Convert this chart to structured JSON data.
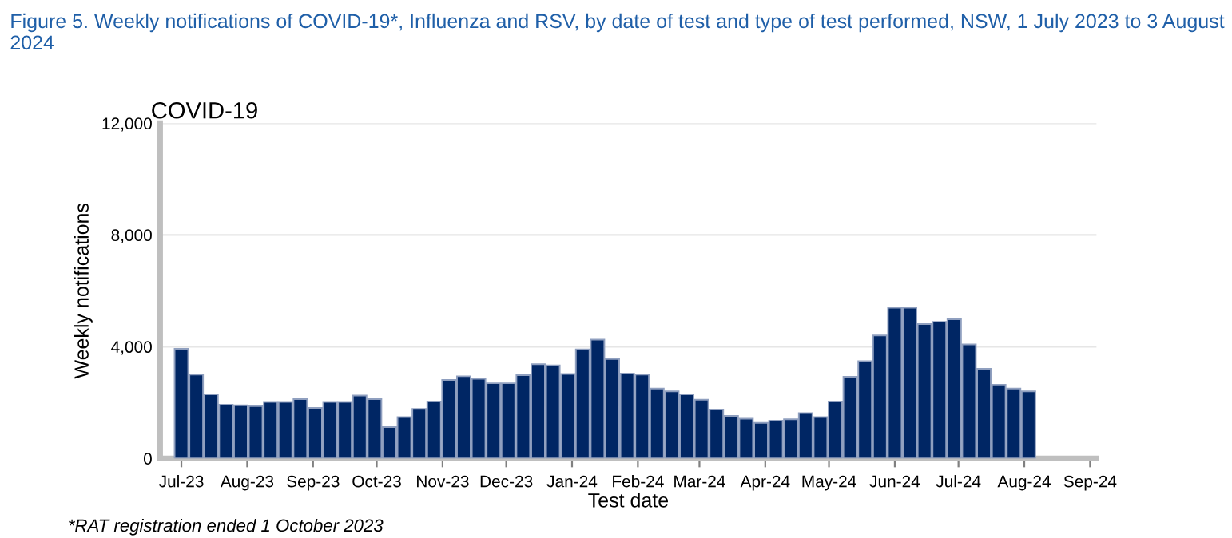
{
  "chart_data": {
    "type": "bar",
    "title": "Figure 5. Weekly notifications of COVID-19*, Influenza and RSV, by date of test and type of test performed, NSW, 1 July 2023 to 3 August 2024",
    "subtitle": "COVID-19",
    "xlabel": "Test date",
    "ylabel": "Weekly notifications",
    "annotations": [
      "*RAT registration ended 1 October 2023"
    ],
    "x": [
      "2023-07-01",
      "2023-07-08",
      "2023-07-15",
      "2023-07-22",
      "2023-07-29",
      "2023-08-05",
      "2023-08-12",
      "2023-08-19",
      "2023-08-26",
      "2023-09-02",
      "2023-09-09",
      "2023-09-16",
      "2023-09-23",
      "2023-09-30",
      "2023-10-07",
      "2023-10-14",
      "2023-10-21",
      "2023-10-28",
      "2023-11-04",
      "2023-11-11",
      "2023-11-18",
      "2023-11-25",
      "2023-12-02",
      "2023-12-09",
      "2023-12-16",
      "2023-12-23",
      "2023-12-30",
      "2024-01-06",
      "2024-01-13",
      "2024-01-20",
      "2024-01-27",
      "2024-02-03",
      "2024-02-10",
      "2024-02-17",
      "2024-02-24",
      "2024-03-02",
      "2024-03-09",
      "2024-03-16",
      "2024-03-23",
      "2024-03-30",
      "2024-04-06",
      "2024-04-13",
      "2024-04-20",
      "2024-04-27",
      "2024-05-04",
      "2024-05-11",
      "2024-05-18",
      "2024-05-25",
      "2024-06-01",
      "2024-06-08",
      "2024-06-15",
      "2024-06-22",
      "2024-06-29",
      "2024-07-06",
      "2024-07-13",
      "2024-07-20",
      "2024-07-27",
      "2024-08-03"
    ],
    "series": [
      {
        "color": "#002664",
        "values": [
          3920,
          3000,
          2290,
          1920,
          1900,
          1870,
          2020,
          2020,
          2120,
          1810,
          2020,
          2020,
          2250,
          2120,
          1120,
          1480,
          1770,
          2040,
          2810,
          2940,
          2850,
          2690,
          2690,
          2980,
          3370,
          3330,
          3020,
          3900,
          4250,
          3560,
          3040,
          3000,
          2500,
          2400,
          2290,
          2100,
          1750,
          1520,
          1420,
          1270,
          1350,
          1400,
          1620,
          1480,
          2040,
          2920,
          3480,
          4400,
          5390,
          5390,
          4810,
          4890,
          4980,
          4080,
          3210,
          2640,
          2500,
          2400
        ]
      }
    ],
    "xlim": [
      "2023-06-21",
      "2024-09-04"
    ],
    "xticks": [
      {
        "value": "2023-07-01",
        "label": "Jul-23"
      },
      {
        "value": "2023-08-01",
        "label": "Aug-23"
      },
      {
        "value": "2023-09-01",
        "label": "Sep-23"
      },
      {
        "value": "2023-10-01",
        "label": "Oct-23"
      },
      {
        "value": "2023-11-01",
        "label": "Nov-23"
      },
      {
        "value": "2023-12-01",
        "label": "Dec-23"
      },
      {
        "value": "2024-01-01",
        "label": "Jan-24"
      },
      {
        "value": "2024-02-01",
        "label": "Feb-24"
      },
      {
        "value": "2024-03-01",
        "label": "Mar-24"
      },
      {
        "value": "2024-04-01",
        "label": "Apr-24"
      },
      {
        "value": "2024-05-01",
        "label": "May-24"
      },
      {
        "value": "2024-06-01",
        "label": "Jun-24"
      },
      {
        "value": "2024-07-01",
        "label": "Jul-24"
      },
      {
        "value": "2024-08-01",
        "label": "Aug-24"
      },
      {
        "value": "2024-09-01",
        "label": "Sep-24"
      }
    ],
    "ylim": [
      0,
      12000
    ],
    "yticks": [
      0,
      {
        "value": 4000,
        "label": "4,000"
      },
      {
        "value": 8000,
        "label": "8,000"
      },
      {
        "value": 12000,
        "label": "12,000"
      }
    ],
    "grid": "y",
    "legend": false
  }
}
